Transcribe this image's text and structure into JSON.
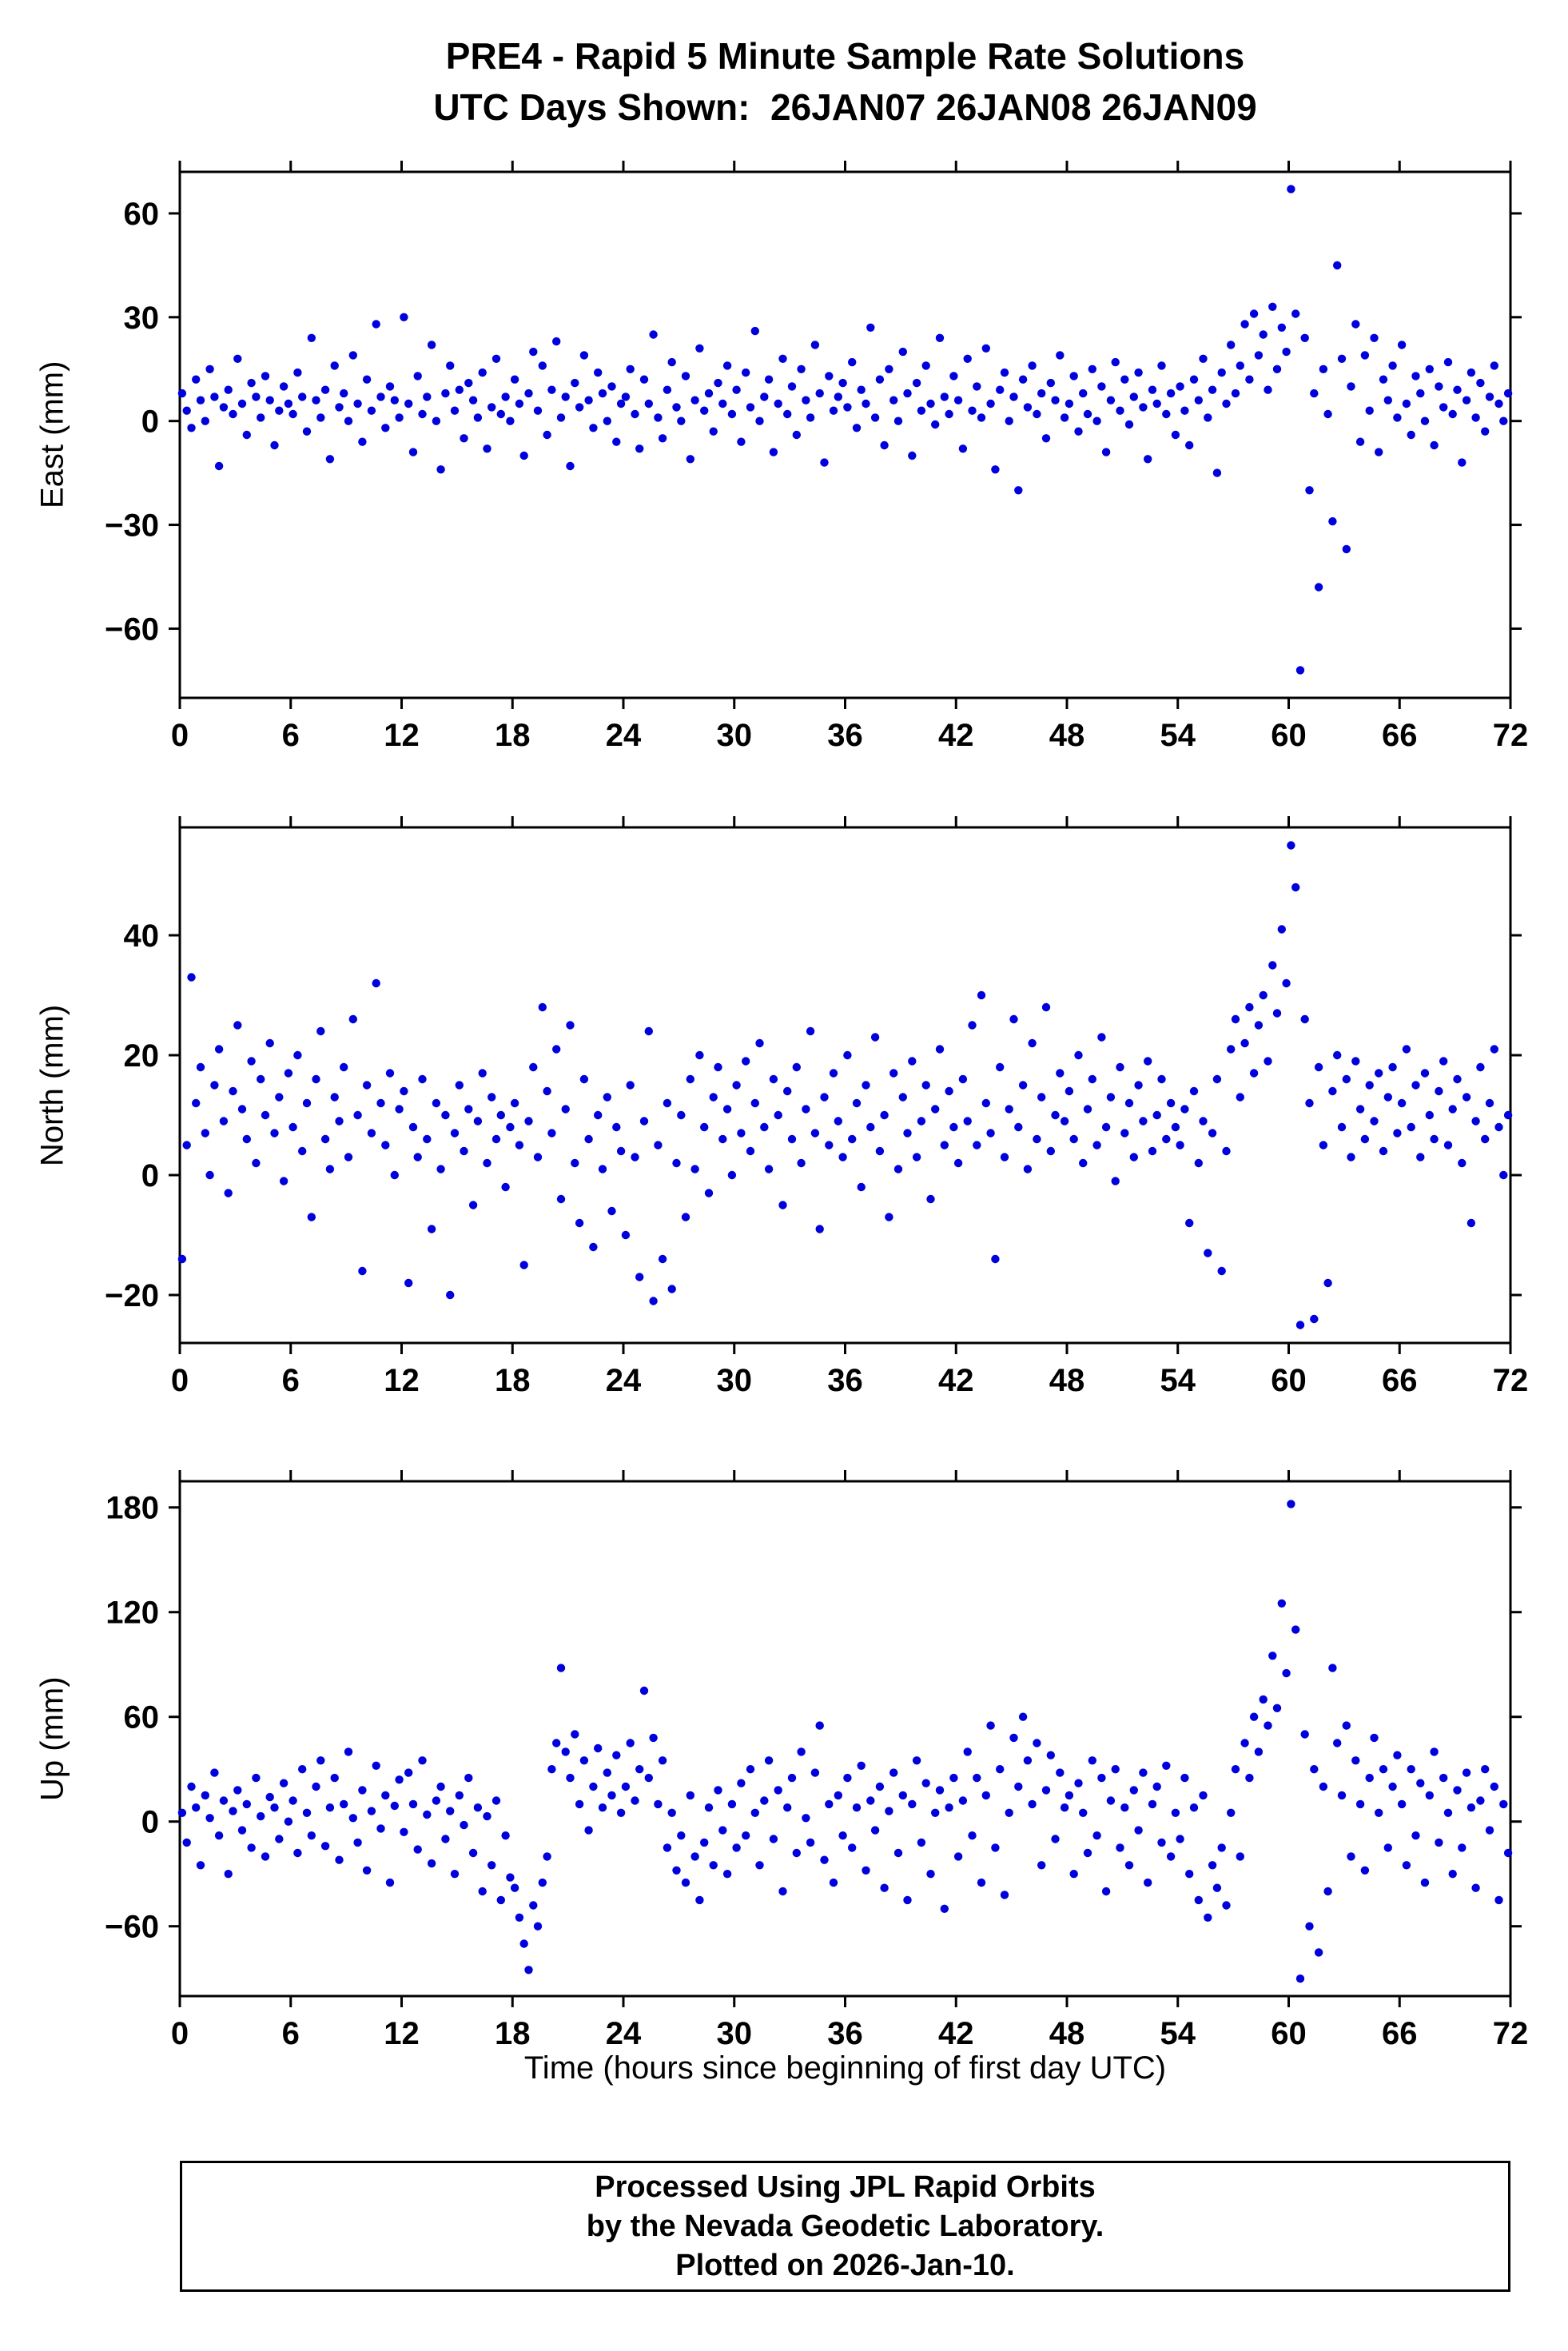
{
  "header": {
    "title_line1": "PRE4 - Rapid 5 Minute Sample Rate Solutions",
    "title_line2": "UTC Days Shown:  26JAN07 26JAN08 26JAN09"
  },
  "xlabel": "Time (hours since beginning of first day UTC)",
  "footer": {
    "line1": "Processed Using JPL Rapid Orbits",
    "line2": "by the Nevada Geodetic Laboratory.",
    "line3": "Plotted on 2026-Jan-10."
  },
  "chart_data": [
    {
      "type": "scatter",
      "name": "east-component",
      "ylabel": "East (mm)",
      "xlim": [
        0,
        72
      ],
      "ylim": [
        -80,
        72
      ],
      "xticks": [
        0,
        6,
        12,
        18,
        24,
        30,
        36,
        42,
        48,
        54,
        60,
        66,
        72
      ],
      "yticks": [
        -60,
        -30,
        0,
        30,
        60
      ],
      "x_start": 0.125,
      "x_step": 0.25,
      "color": "#0000dd",
      "marker": "circle",
      "y": [
        8,
        3,
        -2,
        12,
        6,
        0,
        15,
        7,
        -13,
        4,
        9,
        2,
        18,
        5,
        -4,
        11,
        7,
        1,
        13,
        6,
        -7,
        3,
        10,
        5,
        2,
        14,
        7,
        -3,
        24,
        6,
        1,
        9,
        -11,
        16,
        4,
        8,
        0,
        19,
        5,
        -6,
        12,
        3,
        28,
        7,
        -2,
        10,
        6,
        1,
        30,
        5,
        -9,
        13,
        2,
        7,
        22,
        0,
        -14,
        8,
        16,
        3,
        9,
        -5,
        11,
        6,
        1,
        14,
        -8,
        4,
        18,
        2,
        7,
        0,
        12,
        5,
        -10,
        8,
        20,
        3,
        16,
        -4,
        9,
        23,
        1,
        7,
        -13,
        11,
        4,
        19,
        6,
        -2,
        14,
        8,
        0,
        10,
        -6,
        5,
        7,
        15,
        2,
        -8,
        12,
        5,
        25,
        1,
        -5,
        9,
        17,
        4,
        0,
        13,
        -11,
        6,
        21,
        3,
        8,
        -3,
        11,
        5,
        16,
        2,
        9,
        -6,
        14,
        4,
        26,
        0,
        7,
        12,
        -9,
        5,
        18,
        2,
        10,
        -4,
        15,
        6,
        1,
        22,
        8,
        -12,
        13,
        3,
        7,
        11,
        4,
        17,
        -2,
        9,
        5,
        27,
        1,
        12,
        -7,
        15,
        6,
        0,
        20,
        8,
        -10,
        11,
        3,
        16,
        5,
        -1,
        24,
        7,
        2,
        13,
        6,
        -8,
        18,
        3,
        10,
        1,
        21,
        5,
        -14,
        9,
        14,
        0,
        7,
        -20,
        12,
        4,
        16,
        2,
        8,
        -5,
        11,
        6,
        19,
        1,
        5,
        13,
        -3,
        8,
        2,
        15,
        0,
        10,
        -9,
        6,
        17,
        3,
        12,
        -1,
        7,
        14,
        4,
        -11,
        9,
        5,
        16,
        2,
        8,
        -4,
        10,
        3,
        -7,
        12,
        6,
        18,
        1,
        9,
        -15,
        14,
        5,
        22,
        8,
        16,
        28,
        12,
        31,
        19,
        25,
        9,
        33,
        15,
        27,
        20,
        67,
        31,
        -72,
        24,
        -20,
        8,
        -48,
        15,
        2,
        -29,
        45,
        18,
        -37,
        10,
        28,
        -6,
        19,
        3,
        24,
        -9,
        12,
        6,
        16,
        1,
        22,
        5,
        -4,
        13,
        8,
        0,
        15,
        -7,
        10,
        4,
        17,
        2,
        9,
        -12,
        6,
        14,
        1,
        11,
        -3,
        7,
        16,
        5,
        0,
        8
      ]
    },
    {
      "type": "scatter",
      "name": "north-component",
      "ylabel": "North (mm)",
      "xlim": [
        0,
        72
      ],
      "ylim": [
        -28,
        58
      ],
      "xticks": [
        0,
        6,
        12,
        18,
        24,
        30,
        36,
        42,
        48,
        54,
        60,
        66,
        72
      ],
      "yticks": [
        -20,
        0,
        20,
        40
      ],
      "x_start": 0.125,
      "x_step": 0.25,
      "color": "#0000dd",
      "marker": "circle",
      "y": [
        -14,
        5,
        33,
        12,
        18,
        7,
        0,
        15,
        21,
        9,
        -3,
        14,
        25,
        11,
        6,
        19,
        2,
        16,
        10,
        22,
        7,
        13,
        -1,
        17,
        8,
        20,
        4,
        12,
        -7,
        16,
        24,
        6,
        1,
        13,
        9,
        18,
        3,
        26,
        10,
        -16,
        15,
        7,
        32,
        12,
        5,
        17,
        0,
        11,
        14,
        -18,
        8,
        3,
        16,
        6,
        -9,
        12,
        1,
        10,
        -20,
        7,
        15,
        4,
        11,
        -5,
        9,
        17,
        2,
        13,
        6,
        10,
        -2,
        8,
        12,
        5,
        -15,
        9,
        18,
        3,
        28,
        14,
        7,
        21,
        -4,
        11,
        25,
        2,
        -8,
        16,
        6,
        -12,
        10,
        1,
        13,
        -6,
        8,
        4,
        -10,
        15,
        3,
        -17,
        9,
        24,
        -21,
        5,
        -14,
        12,
        -19,
        2,
        10,
        -7,
        16,
        1,
        20,
        8,
        -3,
        13,
        18,
        6,
        11,
        0,
        15,
        7,
        19,
        4,
        12,
        22,
        8,
        1,
        16,
        10,
        -5,
        14,
        6,
        18,
        2,
        11,
        24,
        7,
        -9,
        13,
        5,
        17,
        9,
        3,
        20,
        6,
        12,
        -2,
        15,
        8,
        23,
        4,
        10,
        -7,
        17,
        1,
        13,
        7,
        19,
        3,
        9,
        15,
        -4,
        11,
        21,
        5,
        14,
        8,
        2,
        16,
        9,
        25,
        5,
        30,
        12,
        7,
        -14,
        18,
        3,
        11,
        26,
        8,
        15,
        1,
        22,
        6,
        13,
        28,
        4,
        10,
        17,
        9,
        14,
        6,
        20,
        2,
        11,
        16,
        5,
        23,
        8,
        13,
        -1,
        18,
        7,
        12,
        3,
        15,
        9,
        19,
        4,
        10,
        16,
        6,
        12,
        8,
        5,
        11,
        -8,
        14,
        2,
        9,
        -13,
        7,
        16,
        -16,
        4,
        21,
        26,
        13,
        22,
        28,
        17,
        25,
        30,
        19,
        35,
        27,
        41,
        32,
        55,
        48,
        -25,
        26,
        12,
        -24,
        18,
        5,
        -18,
        14,
        20,
        8,
        16,
        3,
        19,
        11,
        6,
        15,
        9,
        17,
        4,
        13,
        18,
        7,
        12,
        21,
        8,
        15,
        3,
        17,
        10,
        6,
        14,
        19,
        5,
        11,
        16,
        2,
        13,
        -8,
        9,
        18,
        6,
        12,
        21,
        8,
        0,
        10
      ]
    },
    {
      "type": "scatter",
      "name": "up-component",
      "ylabel": "Up (mm)",
      "xlim": [
        0,
        72
      ],
      "ylim": [
        -100,
        195
      ],
      "xticks": [
        0,
        6,
        12,
        18,
        24,
        30,
        36,
        42,
        48,
        54,
        60,
        66,
        72
      ],
      "yticks": [
        -60,
        0,
        60,
        120,
        180
      ],
      "x_start": 0.125,
      "x_step": 0.25,
      "color": "#0000dd",
      "marker": "circle",
      "y": [
        5,
        -12,
        20,
        8,
        -25,
        15,
        2,
        28,
        -8,
        12,
        -30,
        6,
        18,
        -5,
        10,
        -15,
        25,
        3,
        -20,
        14,
        8,
        -10,
        22,
        0,
        12,
        -18,
        30,
        5,
        -8,
        20,
        35,
        -14,
        8,
        25,
        -22,
        10,
        40,
        2,
        -12,
        18,
        -28,
        6,
        32,
        -4,
        15,
        -35,
        9,
        24,
        -6,
        28,
        10,
        -16,
        35,
        4,
        -24,
        12,
        20,
        -10,
        6,
        -30,
        15,
        -2,
        25,
        -18,
        8,
        -40,
        3,
        -25,
        12,
        -45,
        -8,
        -32,
        -38,
        -55,
        -70,
        -85,
        -48,
        -60,
        -35,
        -20,
        30,
        45,
        88,
        40,
        25,
        50,
        10,
        35,
        -5,
        20,
        42,
        8,
        28,
        15,
        38,
        5,
        20,
        45,
        12,
        30,
        75,
        25,
        48,
        10,
        35,
        -15,
        5,
        -28,
        -8,
        -35,
        15,
        -20,
        -45,
        -12,
        8,
        -25,
        18,
        -5,
        -30,
        10,
        -15,
        22,
        -8,
        30,
        5,
        -25,
        12,
        35,
        -10,
        18,
        -40,
        8,
        25,
        -18,
        40,
        2,
        -12,
        28,
        55,
        -22,
        10,
        -35,
        15,
        -8,
        25,
        -15,
        8,
        32,
        -28,
        12,
        -5,
        20,
        -38,
        6,
        28,
        -18,
        15,
        -45,
        10,
        35,
        -12,
        22,
        -30,
        5,
        18,
        -50,
        8,
        25,
        -20,
        12,
        40,
        -8,
        25,
        -35,
        15,
        55,
        -15,
        30,
        -42,
        5,
        48,
        20,
        60,
        35,
        10,
        45,
        -25,
        18,
        38,
        -10,
        28,
        8,
        15,
        -30,
        22,
        5,
        -18,
        35,
        -8,
        25,
        -40,
        12,
        30,
        -15,
        8,
        -25,
        18,
        -5,
        28,
        -35,
        10,
        20,
        -12,
        32,
        -20,
        5,
        -10,
        25,
        -30,
        8,
        -45,
        15,
        -55,
        -25,
        -38,
        -15,
        -48,
        5,
        30,
        -20,
        45,
        25,
        60,
        40,
        70,
        55,
        95,
        65,
        125,
        85,
        182,
        110,
        -90,
        50,
        -60,
        30,
        -75,
        20,
        -40,
        88,
        45,
        15,
        55,
        -20,
        35,
        10,
        -28,
        25,
        48,
        5,
        30,
        -15,
        20,
        38,
        10,
        -25,
        30,
        -8,
        22,
        -35,
        15,
        40,
        -12,
        25,
        5,
        -30,
        18,
        -15,
        28,
        8,
        -38,
        12,
        30,
        -5,
        20,
        -45,
        10,
        -18
      ]
    }
  ]
}
